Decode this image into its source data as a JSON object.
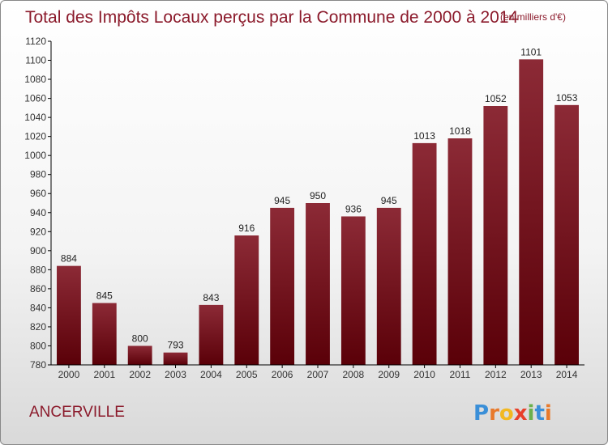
{
  "chart_data": {
    "type": "bar",
    "title": "Total des Impôts Locaux perçus par la Commune de 2000 à 2014",
    "unit_note": "(en milliers d'€)",
    "categories": [
      "2000",
      "2001",
      "2002",
      "2003",
      "2004",
      "2005",
      "2006",
      "2007",
      "2008",
      "2009",
      "2010",
      "2011",
      "2012",
      "2013",
      "2014"
    ],
    "values": [
      884,
      845,
      800,
      793,
      843,
      916,
      945,
      950,
      936,
      945,
      1013,
      1018,
      1052,
      1101,
      1053
    ],
    "value_labels": [
      "884",
      "845",
      "800",
      "793",
      "843",
      "916",
      "945",
      "950",
      "936",
      "945",
      "1013",
      "1018",
      "1052",
      "1101",
      "1053"
    ],
    "ylim": [
      780,
      1120
    ],
    "yticks": [
      780,
      800,
      820,
      840,
      860,
      880,
      900,
      920,
      940,
      960,
      980,
      1000,
      1020,
      1040,
      1060,
      1080,
      1100,
      1120
    ],
    "ytick_labels": [
      "780",
      "800",
      "820",
      "840",
      "860",
      "880",
      "900",
      "920",
      "940",
      "960",
      "980",
      "1000",
      "1020",
      "1040",
      "1060",
      "1080",
      "1100",
      "1120"
    ],
    "xlabel": "",
    "ylabel": "",
    "grid": false,
    "bar_color_top": "#8c2a36",
    "bar_color_bottom": "#5a0008"
  },
  "commune": "ANCERVILLE",
  "logo": {
    "letters": [
      "P",
      "r",
      "o",
      "x",
      "i",
      "t",
      "i"
    ],
    "colors": [
      "#3a8fd8",
      "#e8792b",
      "#f2b820",
      "#e8402a",
      "#6ab04c",
      "#3a8fd8",
      "#e8792b"
    ]
  }
}
